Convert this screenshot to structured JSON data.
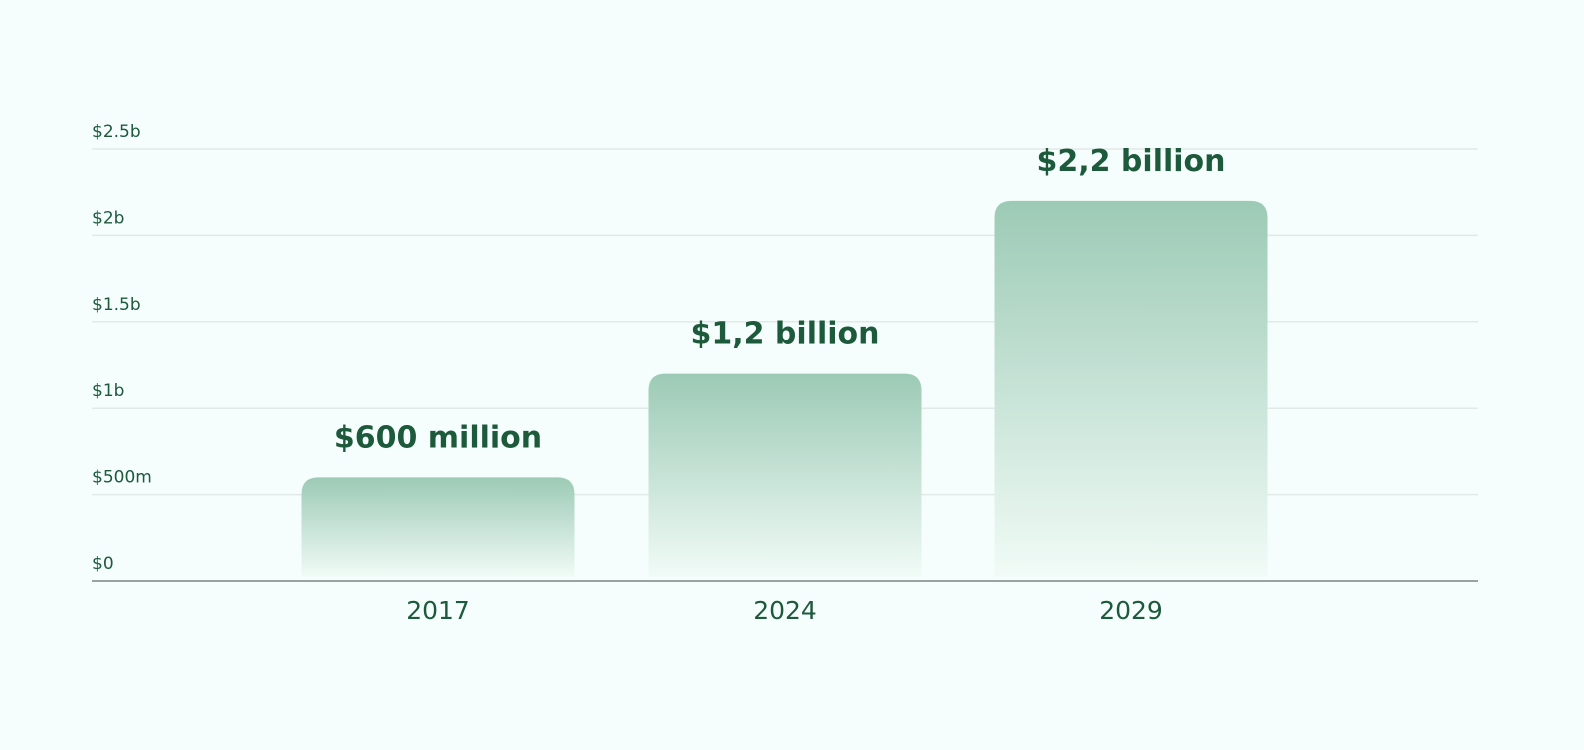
{
  "chart_data": {
    "type": "bar",
    "categories": [
      "2017",
      "2024",
      "2029"
    ],
    "values": [
      0.6,
      1.2,
      2.2
    ],
    "value_unit": "billion USD",
    "data_labels": [
      "$600 million",
      "$1,2 billion",
      "$2,2 billion"
    ],
    "y_ticks": [
      {
        "value": 0,
        "label": "$0"
      },
      {
        "value": 0.5,
        "label": "$500m"
      },
      {
        "value": 1,
        "label": "$1b"
      },
      {
        "value": 1.5,
        "label": "$1.5b"
      },
      {
        "value": 2,
        "label": "$2b"
      },
      {
        "value": 2.5,
        "label": "$2.5b"
      }
    ],
    "ylim": [
      0,
      2.5
    ],
    "grid": true,
    "title": "",
    "xlabel": "",
    "ylabel": "",
    "colors": {
      "background": "#f5fefd",
      "bar_top": "#9ccab5",
      "bar_bottom": "#f1fbf7",
      "gridline": "#e3e9e7",
      "axis": "#9aa3a0",
      "text": "#1d5a3c"
    }
  }
}
